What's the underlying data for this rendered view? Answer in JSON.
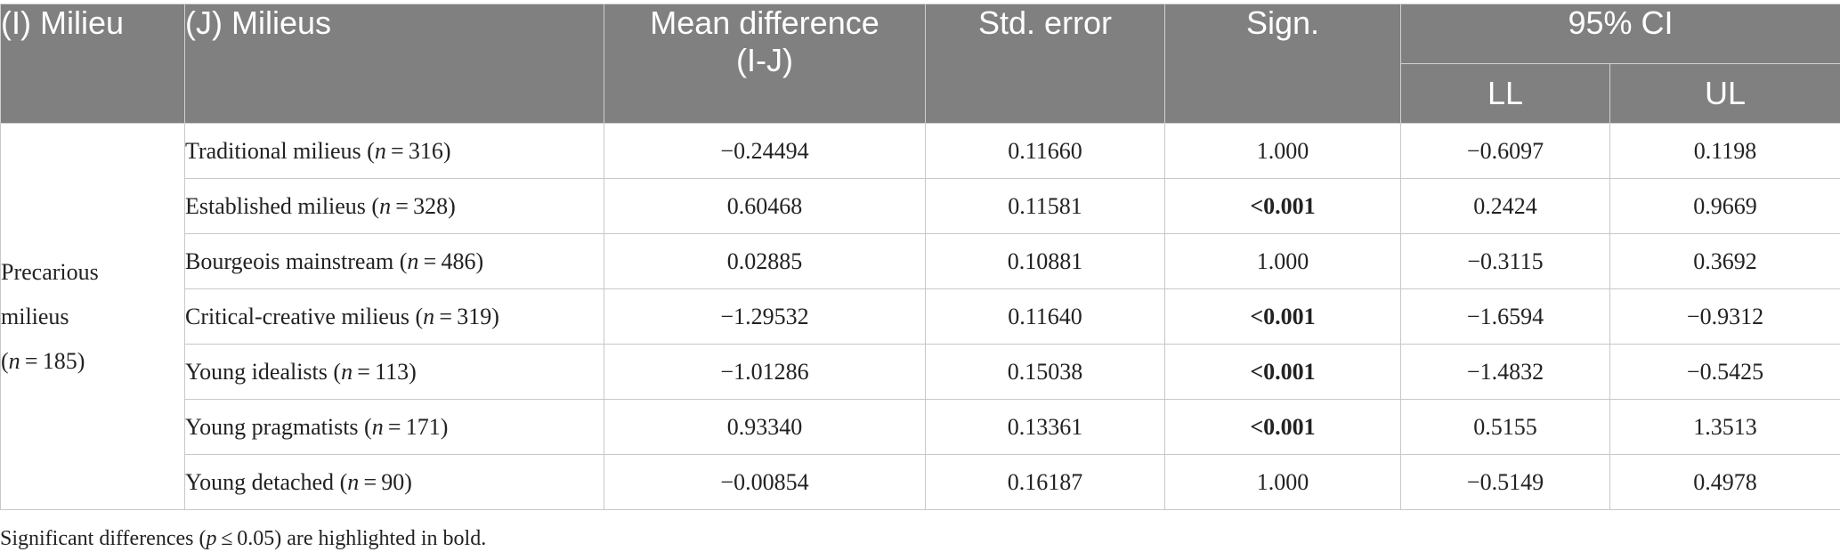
{
  "header": {
    "col_i": "(I) Milieu",
    "col_j": "(J) Milieus",
    "col_mean_line1": "Mean difference",
    "col_mean_line2": "(I-J)",
    "col_se": "Std. error",
    "col_sign": "Sign.",
    "col_ci": "95% CI",
    "col_ll": "LL",
    "col_ul": "UL"
  },
  "group": {
    "label_line1": "Precarious",
    "label_line2": "milieus",
    "n_text": "(n = 185)"
  },
  "rows": [
    {
      "name": "Traditional milieus",
      "n_text": "(n = 316)",
      "mean": "−0.24494",
      "se": "0.11660",
      "sign": "1.000",
      "sign_bold": false,
      "ll": "−0.6097",
      "ul": "0.1198"
    },
    {
      "name": "Established milieus",
      "n_text": "(n = 328)",
      "mean": "0.60468",
      "se": "0.11581",
      "sign": "<0.001",
      "sign_bold": true,
      "ll": "0.2424",
      "ul": "0.9669"
    },
    {
      "name": "Bourgeois mainstream",
      "n_text": "(n = 486)",
      "mean": "0.02885",
      "se": "0.10881",
      "sign": "1.000",
      "sign_bold": false,
      "ll": "−0.3115",
      "ul": "0.3692"
    },
    {
      "name": "Critical-creative milieus",
      "n_text": "(n = 319)",
      "mean": "−1.29532",
      "se": "0.11640",
      "sign": "<0.001",
      "sign_bold": true,
      "ll": "−1.6594",
      "ul": "−0.9312"
    },
    {
      "name": "Young idealists",
      "n_text": "(n = 113)",
      "mean": "−1.01286",
      "se": "0.15038",
      "sign": "<0.001",
      "sign_bold": true,
      "ll": "−1.4832",
      "ul": "−0.5425"
    },
    {
      "name": "Young pragmatists",
      "n_text": "(n = 171)",
      "mean": "0.93340",
      "se": "0.13361",
      "sign": "<0.001",
      "sign_bold": true,
      "ll": "0.5155",
      "ul": "1.3513"
    },
    {
      "name": "Young detached",
      "n_text": "(n = 90)",
      "mean": "−0.00854",
      "se": "0.16187",
      "sign": "1.000",
      "sign_bold": false,
      "ll": "−0.5149",
      "ul": "0.4978"
    }
  ],
  "footnote": "Significant differences (p ≤ 0.05) are highlighted in bold.",
  "colors": {
    "header_bg": "#808080",
    "header_text": "#ffffff",
    "border": "#c8c8c8"
  }
}
